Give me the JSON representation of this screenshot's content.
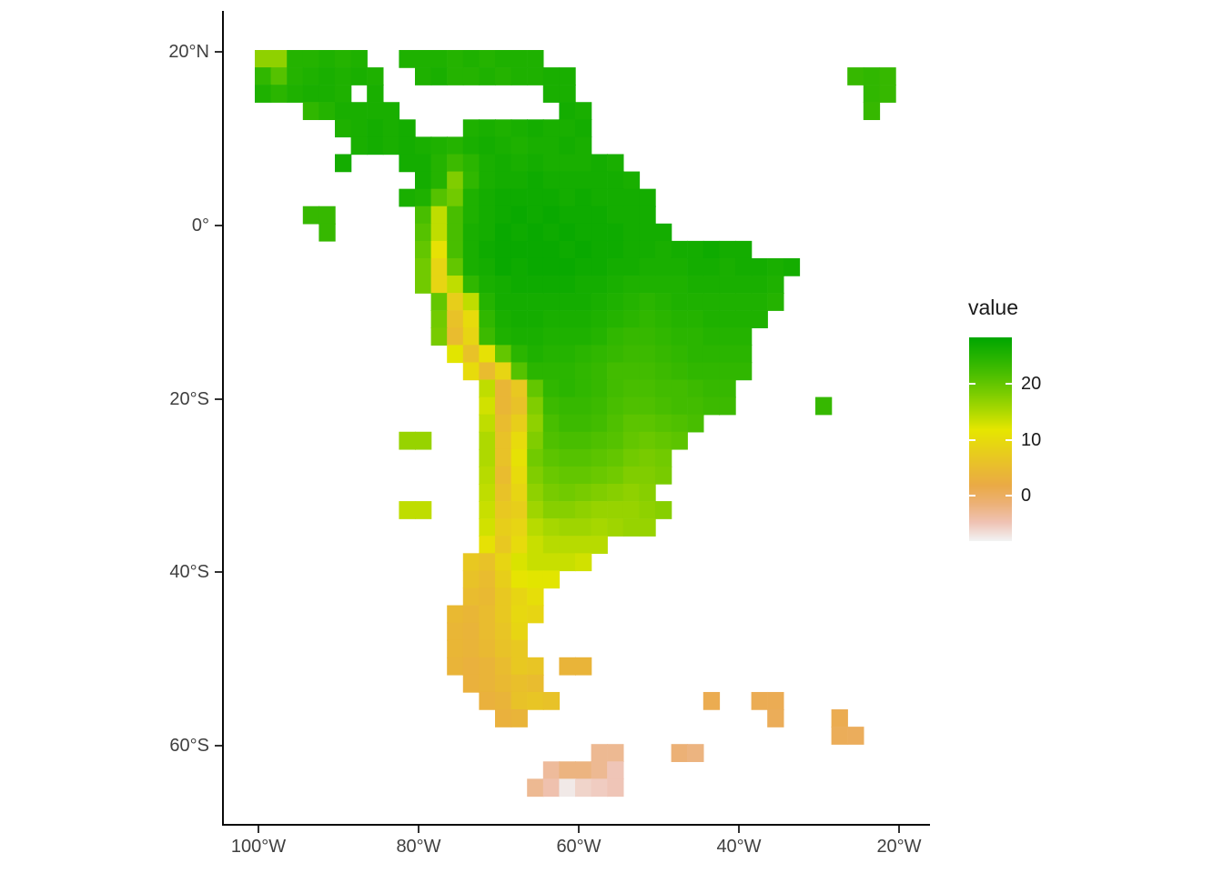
{
  "chart_data": {
    "type": "heatmap",
    "title": "",
    "xlabel": "",
    "ylabel": "",
    "x_axis": {
      "tick_labels": [
        "100°W",
        "80°W",
        "60°W",
        "40°W",
        "20°W"
      ],
      "tick_lons": [
        -100,
        -80,
        -60,
        -40,
        -20
      ]
    },
    "y_axis": {
      "tick_labels": [
        "20°N",
        "0°",
        "20°S",
        "40°S",
        "60°S"
      ],
      "tick_lats": [
        20,
        0,
        -20,
        -40,
        -60
      ]
    },
    "legend": {
      "title": "value",
      "tick_labels": [
        "20",
        "10",
        "0"
      ],
      "tick_values": [
        20,
        10,
        0
      ],
      "value_domain": [
        -8.1,
        28.3
      ]
    },
    "palette": {
      "name": "terrain-reversed",
      "colors": [
        "#F2F2F2",
        "#EFC2B3",
        "#ECB176",
        "#EAAA45",
        "#E9BD2E",
        "#E7D117",
        "#E6E600",
        "#ADD900",
        "#7ACC00",
        "#4CBF00",
        "#24B300",
        "#00A600"
      ]
    },
    "grid": {
      "lon_origin": -102,
      "lat_origin": 20,
      "cell_deg": 2,
      "ncols": 42,
      "nrows": 43
    },
    "cells": [
      [
        0,
        1,
        [
          17,
          17,
          25,
          25,
          25.5,
          25,
          25.5
        ]
      ],
      [
        0,
        10,
        [
          25.5,
          25.5,
          25.5,
          25,
          25.5,
          25,
          25.5,
          25.5,
          25.5
        ]
      ],
      [
        1,
        1,
        [
          24,
          21,
          25,
          25.5,
          26,
          25.5,
          26,
          25.5
        ]
      ],
      [
        1,
        11,
        [
          25.5,
          26,
          25,
          25,
          25.5,
          25,
          25.5,
          25.5,
          26,
          26
        ]
      ],
      [
        1,
        38,
        [
          23.5,
          24,
          23.5
        ]
      ],
      [
        2,
        1,
        [
          25.5,
          24.5,
          25.5,
          26,
          26,
          25.5
        ]
      ],
      [
        2,
        8,
        [
          26
        ]
      ],
      [
        2,
        19,
        [
          26,
          26
        ]
      ],
      [
        2,
        39,
        [
          24,
          23.5
        ]
      ],
      [
        3,
        4,
        [
          24,
          25,
          26,
          26,
          26,
          26
        ]
      ],
      [
        3,
        20,
        [
          26.5,
          26
        ]
      ],
      [
        3,
        39,
        [
          23.5
        ]
      ],
      [
        4,
        6,
        [
          25.5,
          26,
          26.5,
          26,
          26.5
        ]
      ],
      [
        4,
        14,
        [
          25.5,
          26,
          25.5,
          26,
          26.5,
          26,
          26,
          26.5
        ]
      ],
      [
        5,
        7,
        [
          26,
          26.5,
          26,
          26.5,
          26,
          25.5,
          25,
          26,
          26.5,
          26,
          25.5,
          26,
          26,
          26.5,
          26
        ]
      ],
      [
        6,
        6,
        [
          26.5
        ]
      ],
      [
        6,
        10,
        [
          26.5,
          26.5,
          25,
          23,
          24.5,
          26,
          26.5,
          26,
          26.5,
          26,
          26,
          26,
          26.5,
          26
        ]
      ],
      [
        7,
        11,
        [
          26.5,
          25,
          18,
          24,
          26,
          26.5,
          26.5,
          27,
          26.5,
          26.5,
          26.5,
          26.5,
          26.5,
          26
        ]
      ],
      [
        8,
        10,
        [
          26,
          25.5,
          21,
          19,
          25.5,
          26.5,
          27,
          27,
          27,
          27,
          26.5,
          27,
          26.5,
          26.5,
          26.5,
          26.5
        ]
      ],
      [
        9,
        4,
        [
          23.5,
          23.5
        ]
      ],
      [
        9,
        11,
        [
          22,
          14,
          22,
          25.5,
          26.5,
          27,
          27.5,
          27,
          27.5,
          27,
          27,
          27,
          26.5,
          26.5,
          26.5
        ]
      ],
      [
        10,
        5,
        [
          23.5
        ]
      ],
      [
        10,
        11,
        [
          21,
          14,
          22,
          26,
          26.5,
          27.5,
          27,
          27.5,
          27,
          27.5,
          27,
          27,
          27,
          26.5,
          26.5,
          26.5
        ]
      ],
      [
        11,
        11,
        [
          20,
          11,
          22,
          26,
          27,
          27.5,
          27.5,
          27.5,
          27.5,
          27,
          27.5,
          27,
          27,
          26.5,
          26.5,
          26,
          26.5,
          26.5,
          27,
          26.5,
          26.5
        ]
      ],
      [
        12,
        11,
        [
          19,
          9,
          20,
          26,
          26.5,
          27.5,
          27,
          27.5,
          27.5,
          27.5,
          27,
          27,
          26.5,
          26.5,
          26,
          26,
          26,
          26.5,
          26.5,
          26,
          26.5,
          26.5,
          26
        ]
      ],
      [
        12,
        34,
        [
          26.5
        ]
      ],
      [
        13,
        11,
        [
          19,
          9,
          14,
          24,
          26,
          26.5,
          27,
          27,
          27,
          27,
          26.5,
          26.5,
          26,
          25.5,
          25.5,
          25.5,
          25.5,
          26,
          26,
          26,
          26,
          26,
          25.5
        ]
      ],
      [
        14,
        12,
        [
          20,
          8,
          14,
          25,
          26.5,
          26.5,
          26.5,
          26.5,
          26.5,
          26.5,
          26,
          25.5,
          25,
          24.5,
          25,
          25.5,
          25.5,
          25.5,
          25.5,
          25.5,
          25.5,
          25
        ]
      ],
      [
        15,
        12,
        [
          19,
          6,
          10,
          24,
          26,
          26.5,
          26.5,
          26,
          26,
          26,
          25.5,
          25,
          24.5,
          24,
          24.5,
          25,
          25,
          25.5,
          25.5,
          25.5,
          25.5
        ]
      ],
      [
        16,
        12,
        [
          18.5,
          5,
          9,
          23,
          25.5,
          26,
          26,
          25.5,
          25.5,
          25.5,
          25,
          24,
          23.5,
          23.5,
          24,
          24.5,
          24.5,
          25,
          25,
          25
        ]
      ],
      [
        17,
        13,
        [
          12,
          6,
          11,
          20,
          24.5,
          25.5,
          25,
          25,
          24.5,
          24,
          23.5,
          23,
          23,
          23.5,
          24,
          24.5,
          24.5,
          24.5,
          24.5
        ]
      ],
      [
        18,
        14,
        [
          10,
          5,
          9,
          21,
          24.5,
          24.5,
          24.5,
          24,
          23.5,
          22.5,
          22.5,
          22.5,
          23,
          23.5,
          24,
          24,
          24,
          24
        ]
      ],
      [
        19,
        15,
        [
          14,
          4,
          7,
          20,
          24,
          24.5,
          24,
          23.5,
          22.5,
          22,
          22,
          22.5,
          22.5,
          23,
          23.5,
          23.5
        ]
      ],
      [
        20,
        15,
        [
          13,
          4,
          6,
          18,
          23,
          23.5,
          23.5,
          23,
          22,
          21.5,
          21.5,
          22,
          22.5,
          22.5,
          23,
          23
        ]
      ],
      [
        20,
        36,
        [
          23.5
        ]
      ],
      [
        21,
        15,
        [
          14,
          5,
          8,
          17,
          22,
          23,
          23,
          22.5,
          21.5,
          20.5,
          20.5,
          21,
          21.5,
          22
        ]
      ],
      [
        22,
        10,
        [
          16.5,
          16.5
        ]
      ],
      [
        22,
        15,
        [
          15,
          6,
          10,
          18,
          21.5,
          22,
          22,
          21.5,
          21,
          20,
          19.5,
          20,
          20.5
        ]
      ],
      [
        23,
        15,
        [
          15,
          6,
          11,
          19,
          20.5,
          21,
          21,
          20.5,
          20,
          19,
          18.5,
          19
        ]
      ],
      [
        24,
        15,
        [
          14.5,
          5,
          10,
          18,
          19.5,
          20,
          20,
          19.5,
          19,
          18,
          18,
          18.5
        ]
      ],
      [
        25,
        15,
        [
          14,
          6,
          9,
          17,
          18.5,
          19,
          18.5,
          18,
          17.5,
          17,
          17.5
        ]
      ],
      [
        26,
        10,
        [
          14,
          14
        ]
      ],
      [
        26,
        15,
        [
          13.5,
          7,
          8,
          16,
          17.5,
          17.5,
          17,
          16.5,
          16.5,
          16.5,
          17,
          17.5
        ]
      ],
      [
        27,
        15,
        [
          13,
          8,
          9,
          14.5,
          15.5,
          16,
          16,
          15.5,
          16,
          16.5,
          16.5
        ]
      ],
      [
        28,
        15,
        [
          11,
          7,
          10,
          13.5,
          14.5,
          14.5,
          14.5,
          14.5
        ]
      ],
      [
        29,
        14,
        [
          7,
          6,
          9,
          12.5,
          13.5,
          13.5,
          13.5,
          13
        ]
      ],
      [
        30,
        14,
        [
          6,
          5,
          8,
          11.5,
          12,
          12
        ]
      ],
      [
        31,
        14,
        [
          5,
          4.5,
          7,
          9,
          10.5
        ]
      ],
      [
        32,
        13,
        [
          4.5,
          4,
          5,
          7,
          9.5,
          9
        ]
      ],
      [
        33,
        13,
        [
          4,
          3.5,
          5,
          6.5,
          9
        ]
      ],
      [
        34,
        13,
        [
          4,
          3.5,
          4.5,
          6,
          7
        ]
      ],
      [
        35,
        13,
        [
          3.5,
          3,
          3.5,
          5,
          7,
          6.5
        ]
      ],
      [
        35,
        20,
        [
          3.5,
          3.5
        ]
      ],
      [
        36,
        14,
        [
          3,
          3.5,
          4.5,
          5.5,
          5
        ]
      ],
      [
        37,
        15,
        [
          3,
          3.5,
          6,
          6.5,
          6
        ]
      ],
      [
        37,
        29,
        [
          1
        ]
      ],
      [
        37,
        32,
        [
          0.8,
          0.8
        ]
      ],
      [
        38,
        16,
        [
          3,
          3.5
        ]
      ],
      [
        38,
        33,
        [
          0.5
        ]
      ],
      [
        38,
        37,
        [
          1
        ]
      ],
      [
        39,
        37,
        [
          0.5,
          0.3
        ]
      ],
      [
        40,
        22,
        [
          -3,
          -3
        ]
      ],
      [
        40,
        27,
        [
          -1.5,
          -2
        ]
      ],
      [
        41,
        19,
        [
          -3.5,
          -2,
          -2,
          -3,
          -5
        ]
      ],
      [
        42,
        18,
        [
          -3,
          -4.5,
          -7.5,
          -6,
          -5.5,
          -5
        ]
      ]
    ]
  },
  "colors": {
    "background": "#ffffff",
    "axis_line": "#0a0a0a",
    "tick_mark": "#333333",
    "tick_text": "#404040",
    "legend_text": "#1a1a1a"
  }
}
